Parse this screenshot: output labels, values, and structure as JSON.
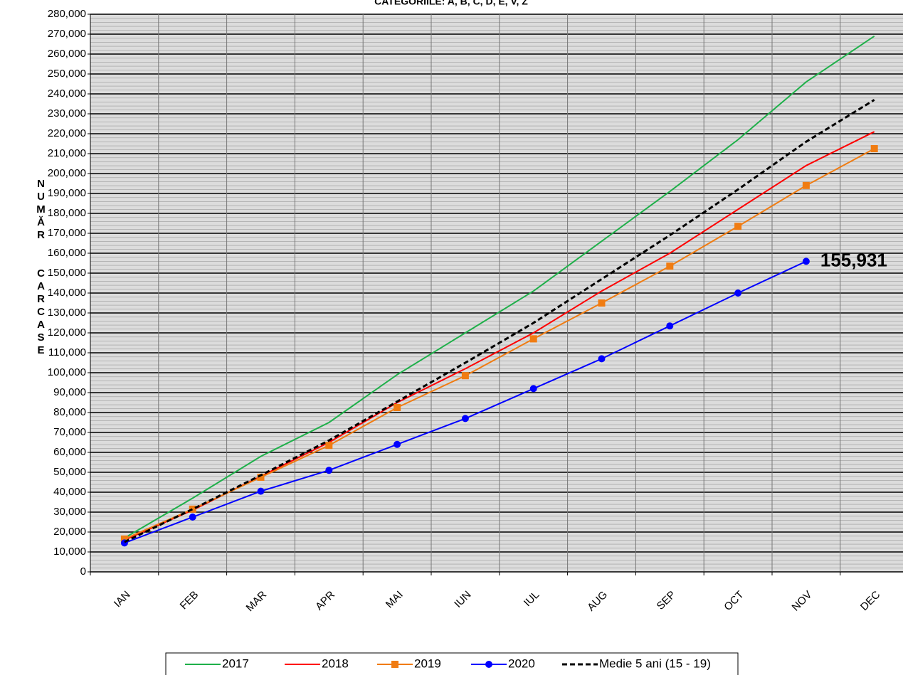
{
  "chart_data": {
    "type": "line",
    "title": "CATEGORIILE: A, B, C, D, E, V, Z",
    "y_label": "NUMĂR  CARCASE",
    "categories": [
      "IAN",
      "FEB",
      "MAR",
      "APR",
      "MAI",
      "IUN",
      "IUL",
      "AUG",
      "SEP",
      "OCT",
      "NOV",
      "DEC"
    ],
    "series": [
      {
        "name": "2017",
        "color": "#1fb04a",
        "marker": "none",
        "dash": false,
        "values": [
          17000,
          37000,
          58000,
          75000,
          99000,
          120000,
          141000,
          166000,
          191000,
          217000,
          246000,
          269000
        ]
      },
      {
        "name": "2018",
        "color": "#ff0000",
        "marker": "none",
        "dash": false,
        "values": [
          16000,
          31000,
          48000,
          65000,
          85000,
          102000,
          120000,
          141000,
          160000,
          182000,
          204000,
          221000
        ]
      },
      {
        "name": "2019",
        "color": "#f07c12",
        "marker": "square",
        "dash": false,
        "values": [
          16500,
          31500,
          47500,
          63500,
          82500,
          98500,
          117000,
          135000,
          153500,
          173500,
          194000,
          212500
        ]
      },
      {
        "name": "2020",
        "color": "#0000ff",
        "marker": "circle",
        "dash": false,
        "values": [
          14500,
          27500,
          40500,
          51000,
          64000,
          77000,
          92000,
          107000,
          123500,
          140000,
          155931,
          null
        ],
        "value_labels": [
          null,
          null,
          null,
          null,
          null,
          null,
          null,
          null,
          null,
          null,
          "155,931",
          null
        ]
      },
      {
        "name": "Medie 5 ani (15 - 19)",
        "color": "#000000",
        "marker": "none",
        "dash": true,
        "values": [
          15000,
          31500,
          48500,
          66000,
          85500,
          105000,
          125000,
          147000,
          169000,
          192000,
          216000,
          237000
        ]
      }
    ],
    "ylim": [
      0,
      280000
    ],
    "yticks": [
      0,
      {
        "value": 10000,
        "label": "10,000"
      },
      {
        "value": 20000,
        "label": "20,000"
      },
      {
        "value": 30000,
        "label": "30,000"
      },
      {
        "value": 40000,
        "label": "40,000"
      },
      {
        "value": 50000,
        "label": "50,000"
      },
      {
        "value": 60000,
        "label": "60,000"
      },
      {
        "value": 70000,
        "label": "70,000"
      },
      {
        "value": 80000,
        "label": "80,000"
      },
      {
        "value": 90000,
        "label": "90,000"
      },
      {
        "value": 100000,
        "label": "100,000"
      },
      {
        "value": 110000,
        "label": "110,000"
      },
      {
        "value": 120000,
        "label": "120,000"
      },
      {
        "value": 130000,
        "label": "130,000"
      },
      {
        "value": 140000,
        "label": "140,000"
      },
      {
        "value": 150000,
        "label": "150,000"
      },
      {
        "value": 160000,
        "label": "160,000"
      },
      {
        "value": 170000,
        "label": "170,000"
      },
      {
        "value": 180000,
        "label": "180,000"
      },
      {
        "value": 190000,
        "label": "190,000"
      },
      {
        "value": 200000,
        "label": "200,000"
      },
      {
        "value": 210000,
        "label": "210,000"
      },
      {
        "value": 220000,
        "label": "220,000"
      },
      {
        "value": 230000,
        "label": "230,000"
      },
      {
        "value": 240000,
        "label": "240,000"
      },
      {
        "value": 250000,
        "label": "250,000"
      },
      {
        "value": 260000,
        "label": "260,000"
      },
      {
        "value": 270000,
        "label": "270,000"
      },
      {
        "value": 280000,
        "label": "280,000"
      }
    ],
    "grid": true,
    "legend": "bottom"
  }
}
